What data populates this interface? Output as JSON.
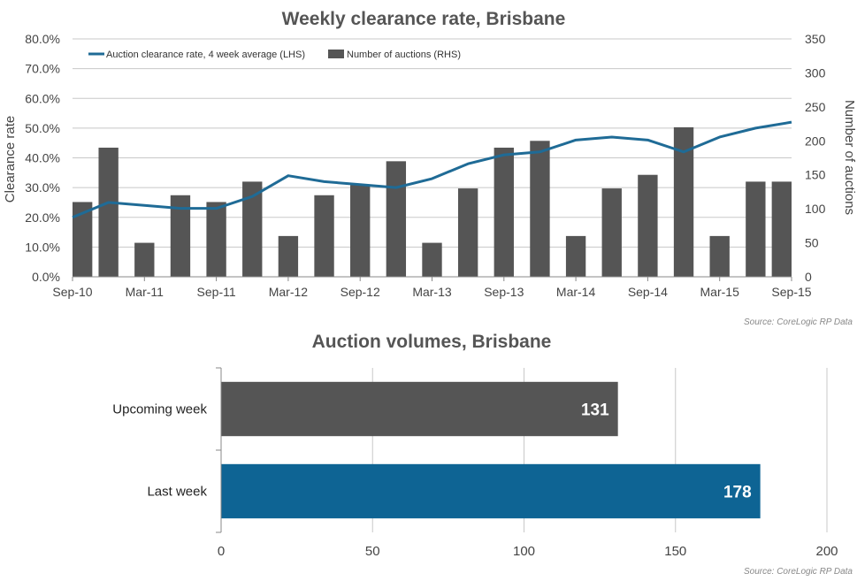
{
  "colors": {
    "line": "#1f6b96",
    "bars": "#555555",
    "blue_bar": "#0e6494",
    "grid": "#c8c8c8"
  },
  "chart_data": [
    {
      "type": "bar",
      "title": "Weekly clearance rate, Brisbane",
      "ylabel": "Clearance rate",
      "y2label": "Number of auctions",
      "ylim": [
        0,
        80
      ],
      "y2lim": [
        0,
        350
      ],
      "yticks": [
        "0.0%",
        "10.0%",
        "20.0%",
        "30.0%",
        "40.0%",
        "50.0%",
        "60.0%",
        "70.0%",
        "80.0%"
      ],
      "y2ticks": [
        "0",
        "50",
        "100",
        "150",
        "200",
        "250",
        "300",
        "350"
      ],
      "xticks": [
        "Sep-10",
        "Mar-11",
        "Sep-11",
        "Mar-12",
        "Sep-12",
        "Mar-13",
        "Sep-13",
        "Mar-14",
        "Sep-14",
        "Mar-15",
        "Sep-15"
      ],
      "legend_position": "top-left",
      "series": [
        {
          "name": "Auction clearance rate, 4 week average (LHS)",
          "type": "line",
          "x": [
            "Sep-10",
            "Dec-10",
            "Mar-11",
            "Jun-11",
            "Sep-11",
            "Dec-11",
            "Mar-12",
            "Jun-12",
            "Sep-12",
            "Dec-12",
            "Mar-13",
            "Jun-13",
            "Sep-13",
            "Dec-13",
            "Mar-14",
            "Jun-14",
            "Sep-14",
            "Dec-14",
            "Mar-15",
            "Jun-15",
            "Sep-15"
          ],
          "values": [
            20.0,
            25.0,
            24.0,
            23.0,
            23.0,
            27.0,
            34.0,
            32.0,
            31.0,
            30.0,
            33.0,
            38.0,
            41.0,
            42.0,
            46.0,
            47.0,
            46.0,
            42.0,
            47.0,
            50.0,
            52.0
          ]
        },
        {
          "name": "Number of auctions (RHS)",
          "type": "bar",
          "axis": "right",
          "x": [
            "Sep-10",
            "Dec-10",
            "Mar-11",
            "Jun-11",
            "Sep-11",
            "Dec-11",
            "Mar-12",
            "Jun-12",
            "Sep-12",
            "Dec-12",
            "Mar-13",
            "Jun-13",
            "Sep-13",
            "Dec-13",
            "Mar-14",
            "Jun-14",
            "Sep-14",
            "Dec-14",
            "Mar-15",
            "Jun-15",
            "Sep-15"
          ],
          "values": [
            110,
            190,
            50,
            120,
            110,
            140,
            60,
            120,
            135,
            170,
            50,
            130,
            190,
            200,
            60,
            130,
            150,
            220,
            60,
            140,
            140
          ]
        }
      ],
      "source": "Source: CoreLogic  RP Data"
    },
    {
      "type": "bar",
      "orientation": "horizontal",
      "title": "Auction volumes, Brisbane",
      "categories": [
        "Upcoming week",
        "Last week"
      ],
      "values": [
        131,
        178
      ],
      "value_labels": [
        "131",
        "178"
      ],
      "xlim": [
        0,
        200
      ],
      "xticks": [
        "0",
        "50",
        "100",
        "150",
        "200"
      ],
      "colors": [
        "#555555",
        "#0e6494"
      ],
      "source": "Source: CoreLogic  RP Data"
    }
  ]
}
